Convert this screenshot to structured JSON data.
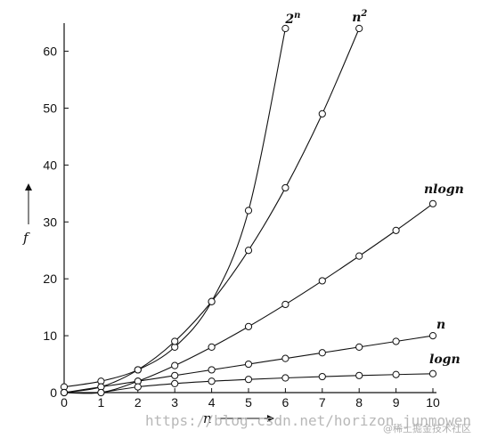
{
  "chart_data": {
    "type": "line",
    "x": [
      0,
      1,
      2,
      3,
      4,
      5,
      6,
      7,
      8,
      9,
      10
    ],
    "xlim": [
      0,
      10
    ],
    "ylim": [
      0,
      64
    ],
    "xticks": [
      "0",
      "1",
      "2",
      "3",
      "4",
      "5",
      "6",
      "7",
      "8",
      "9",
      "10"
    ],
    "yticks": [
      "0",
      "10",
      "20",
      "30",
      "40",
      "50",
      "60"
    ],
    "xlabel": "n",
    "ylabel": "f",
    "grid": false,
    "series": [
      {
        "name": "2",
        "exp": "n",
        "x": [
          0,
          1,
          2,
          3,
          4,
          5,
          6
        ],
        "values": [
          1,
          2,
          4,
          8,
          16,
          32,
          64
        ]
      },
      {
        "name": "n",
        "exp": "2",
        "x": [
          0,
          1,
          2,
          3,
          4,
          5,
          6,
          7,
          8
        ],
        "values": [
          0,
          1,
          4,
          9,
          16,
          25,
          36,
          49,
          64
        ]
      },
      {
        "name": "nlogn",
        "x": [
          0,
          1,
          2,
          3,
          4,
          5,
          6,
          7,
          8,
          9,
          10
        ],
        "values": [
          0,
          0,
          2,
          4.75,
          8,
          11.6,
          15.5,
          19.65,
          24,
          28.5,
          33.2
        ]
      },
      {
        "name": "n",
        "x": [
          0,
          1,
          2,
          3,
          4,
          5,
          6,
          7,
          8,
          9,
          10
        ],
        "values": [
          0,
          1,
          2,
          3,
          4,
          5,
          6,
          7,
          8,
          9,
          10
        ]
      },
      {
        "name": "logn",
        "x": [
          1,
          2,
          3,
          4,
          5,
          6,
          7,
          8,
          9,
          10
        ],
        "values": [
          0,
          1,
          1.58,
          2,
          2.32,
          2.58,
          2.81,
          3,
          3.17,
          3.32
        ]
      }
    ]
  },
  "watermark": {
    "url": "https://blog.csdn.net/horizon_junmowen",
    "site": "@稀土掘金技术社区"
  }
}
